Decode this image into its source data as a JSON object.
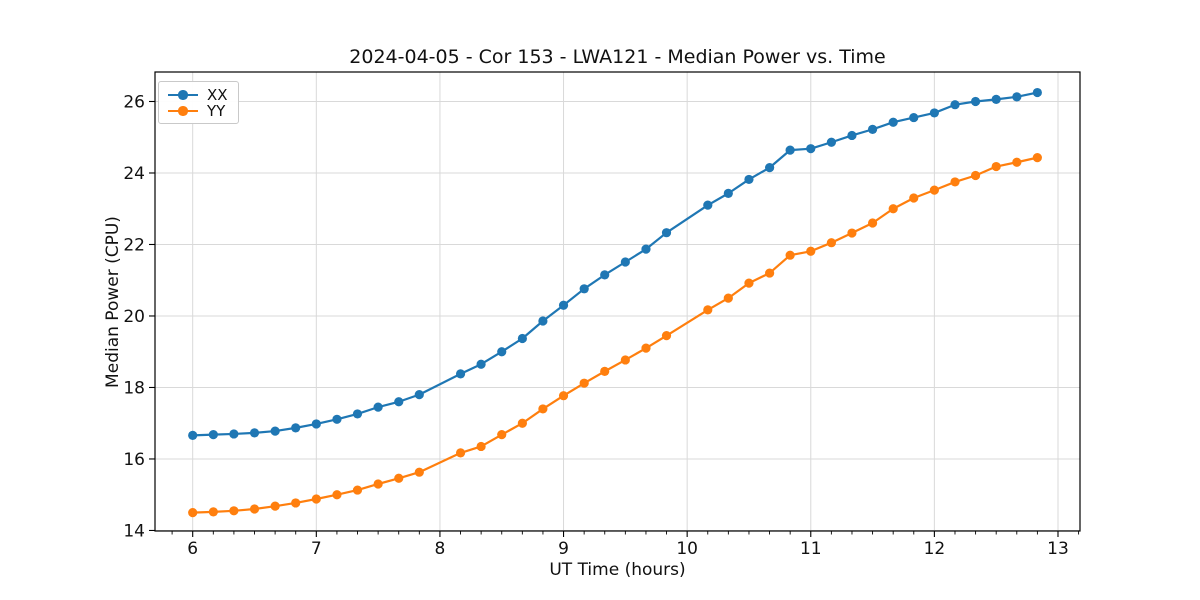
{
  "chart_data": {
    "type": "line",
    "title": "2024-04-05 - Cor 153 - LWA121 - Median Power vs. Time",
    "xlabel": "UT Time (hours)",
    "ylabel": "Median Power (CPU)",
    "xlim": [
      5.695,
      13.178
    ],
    "ylim": [
      13.985,
      26.825
    ],
    "x_ticks": [
      6,
      7,
      8,
      9,
      10,
      11,
      12,
      13
    ],
    "y_ticks": [
      14,
      16,
      18,
      20,
      22,
      24,
      26
    ],
    "x_minor_tick_step": 0.1667,
    "grid": true,
    "legend": {
      "position": "upper left",
      "entries": [
        "XX",
        "YY"
      ]
    },
    "series": [
      {
        "name": "XX",
        "color": "#1f77b4",
        "marker": "circle",
        "x": [
          6.0,
          6.167,
          6.333,
          6.5,
          6.667,
          6.833,
          7.0,
          7.167,
          7.333,
          7.5,
          7.667,
          7.833,
          8.167,
          8.333,
          8.5,
          8.667,
          8.833,
          9.0,
          9.167,
          9.333,
          9.5,
          9.667,
          9.833,
          10.167,
          10.333,
          10.5,
          10.667,
          10.833,
          11.0,
          11.167,
          11.333,
          11.5,
          11.667,
          11.833,
          12.0,
          12.167,
          12.333,
          12.5,
          12.667,
          12.833
        ],
        "y": [
          16.66,
          16.68,
          16.7,
          16.73,
          16.78,
          16.87,
          16.98,
          17.11,
          17.26,
          17.45,
          17.6,
          17.8,
          18.38,
          18.65,
          19.0,
          19.37,
          19.86,
          20.3,
          20.76,
          21.15,
          21.51,
          21.87,
          22.33,
          23.1,
          23.43,
          23.82,
          24.15,
          24.64,
          24.68,
          24.86,
          25.05,
          25.22,
          25.42,
          25.55,
          25.68,
          25.91,
          26.0,
          26.06,
          26.13,
          26.25
        ]
      },
      {
        "name": "YY",
        "color": "#ff7f0e",
        "marker": "circle",
        "x": [
          6.0,
          6.167,
          6.333,
          6.5,
          6.667,
          6.833,
          7.0,
          7.167,
          7.333,
          7.5,
          7.667,
          7.833,
          8.167,
          8.333,
          8.5,
          8.667,
          8.833,
          9.0,
          9.167,
          9.333,
          9.5,
          9.667,
          9.833,
          10.167,
          10.333,
          10.5,
          10.667,
          10.833,
          11.0,
          11.167,
          11.333,
          11.5,
          11.667,
          11.833,
          12.0,
          12.167,
          12.333,
          12.5,
          12.667,
          12.833
        ],
        "y": [
          14.5,
          14.52,
          14.55,
          14.6,
          14.68,
          14.77,
          14.88,
          15.0,
          15.13,
          15.3,
          15.46,
          15.63,
          16.17,
          16.35,
          16.68,
          17.0,
          17.4,
          17.77,
          18.12,
          18.45,
          18.77,
          19.1,
          19.45,
          20.17,
          20.5,
          20.92,
          21.2,
          21.7,
          21.81,
          22.05,
          22.32,
          22.6,
          23.0,
          23.3,
          23.52,
          23.75,
          23.93,
          24.18,
          24.3,
          24.43
        ]
      }
    ],
    "styles": {
      "grid_color": "#d9d9d9",
      "spine_color": "#000000",
      "text_color": "#111111",
      "background": "#ffffff"
    }
  }
}
